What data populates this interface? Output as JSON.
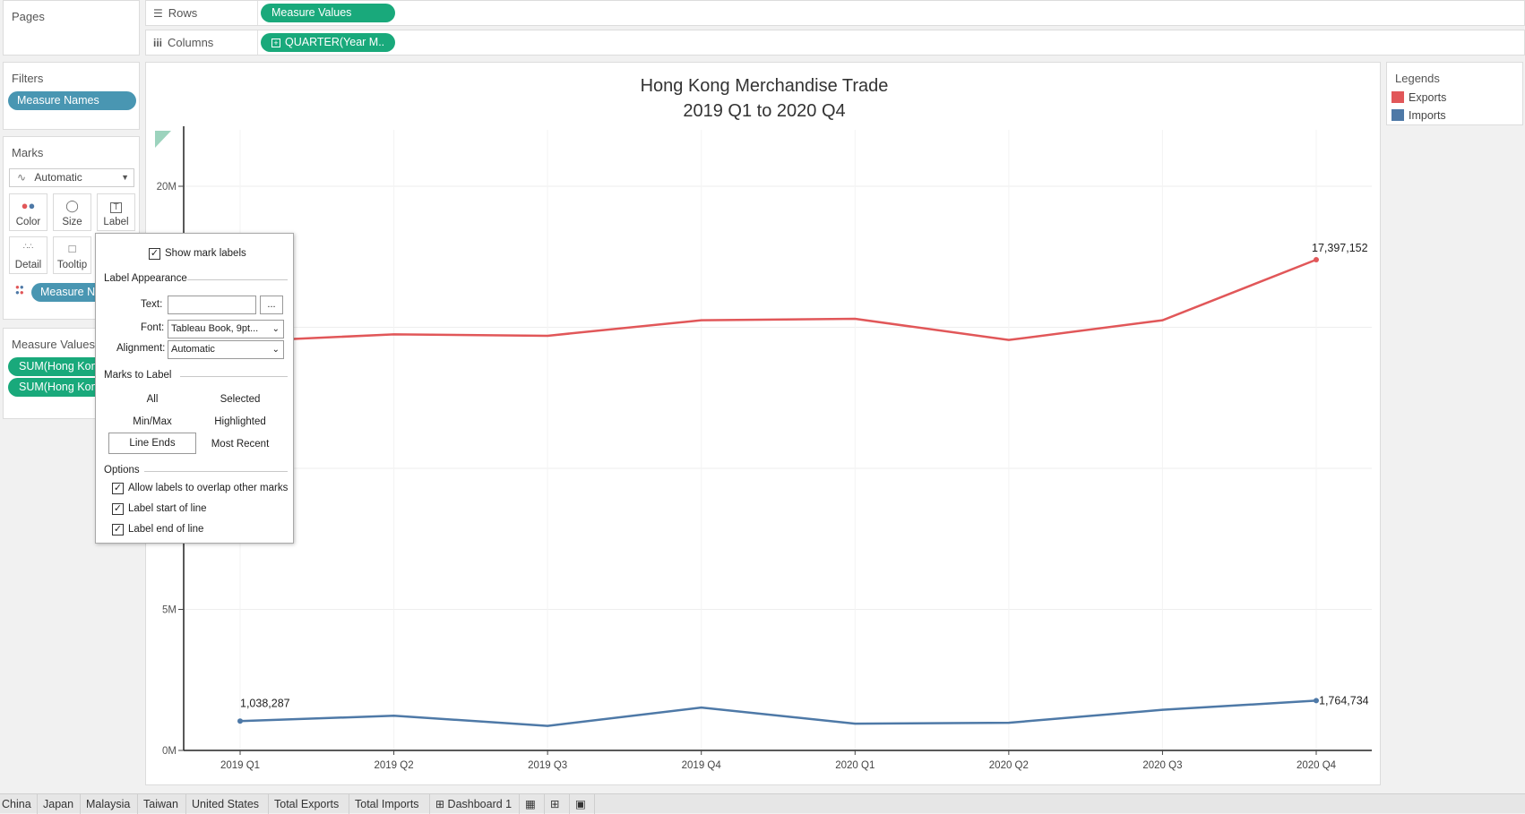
{
  "pages": {
    "title": "Pages"
  },
  "rows": {
    "label": "Rows",
    "pill": "Measure Values"
  },
  "columns": {
    "label": "Columns",
    "pill": "QUARTER(Year M.."
  },
  "filters": {
    "title": "Filters",
    "pill": "Measure Names"
  },
  "marks": {
    "title": "Marks",
    "type": "Automatic",
    "buttons": [
      "Color",
      "Size",
      "Label",
      "Detail",
      "Tooltip"
    ],
    "pill": "Measure N"
  },
  "measure_values": {
    "title": "Measure Values",
    "pills": [
      "SUM(Hong Kon",
      "SUM(Hong Kon"
    ]
  },
  "label_popup": {
    "show_mark_labels": "Show mark labels",
    "label_appearance": "Label Appearance",
    "text_label": "Text:",
    "text_button": "...",
    "font_label": "Font:",
    "font_value": "Tableau Book, 9pt...",
    "alignment_label": "Alignment:",
    "alignment_value": "Automatic",
    "marks_to_label": "Marks to Label",
    "options_row1": [
      "All",
      "Selected"
    ],
    "options_row2": [
      "Min/Max",
      "Highlighted"
    ],
    "options_row3": [
      "Line Ends",
      "Most Recent"
    ],
    "selected_option": "Line Ends",
    "options_title": "Options",
    "checkboxes": [
      "Allow labels to overlap other marks",
      "Label start of line",
      "Label end of line"
    ]
  },
  "legends": {
    "title": "Legends",
    "items": [
      {
        "name": "Exports",
        "color": "#e15759"
      },
      {
        "name": "Imports",
        "color": "#4e79a7"
      }
    ]
  },
  "tabs": [
    "China",
    "Japan",
    "Malaysia",
    "Taiwan",
    "United States",
    "Total Exports",
    "Total Imports",
    "Dashboard 1"
  ],
  "chart_data": {
    "type": "line",
    "title": "Hong Kong Merchandise Trade",
    "subtitle": "2019 Q1 to 2020 Q4",
    "categories": [
      "2019 Q1",
      "2019 Q2",
      "2019 Q3",
      "2019 Q4",
      "2020 Q1",
      "2020 Q2",
      "2020 Q3",
      "2020 Q4"
    ],
    "y_ticks": [
      "0M",
      "5M",
      "20M"
    ],
    "ylim": [
      0,
      22000000
    ],
    "series": [
      {
        "name": "Exports",
        "color": "#e15759",
        "values": [
          14500000,
          14750000,
          14700000,
          15250000,
          15300000,
          14550000,
          15250000,
          17397152
        ]
      },
      {
        "name": "Imports",
        "color": "#4e79a7",
        "values": [
          1038287,
          1230000,
          870000,
          1520000,
          950000,
          980000,
          1440000,
          1764734
        ]
      }
    ],
    "labels": [
      {
        "series": 1,
        "index": 0,
        "text": "1,038,287"
      },
      {
        "series": 0,
        "index": 7,
        "text": "17,397,152"
      },
      {
        "series": 1,
        "index": 7,
        "text": "1,764,734"
      }
    ]
  }
}
